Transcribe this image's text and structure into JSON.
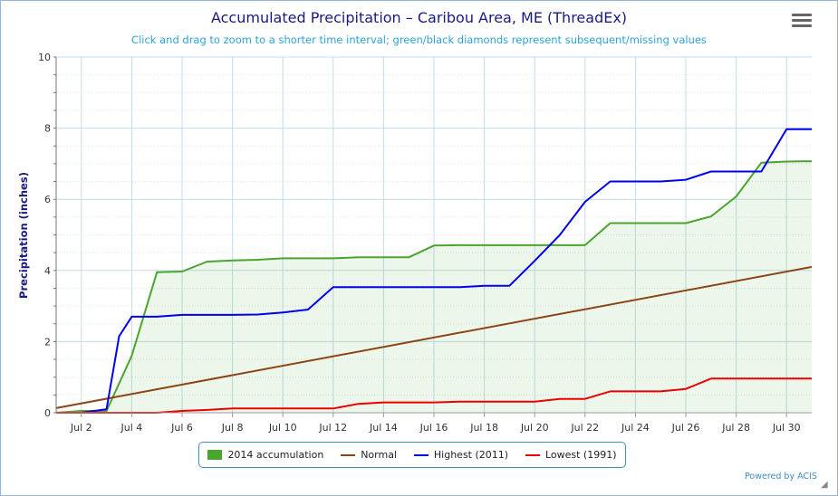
{
  "header": {
    "title": "Accumulated Precipitation – Caribou Area, ME (ThreadEx)",
    "subtitle": "Click and drag to zoom to a shorter time interval; green/black diamonds represent subsequent/missing values"
  },
  "credits": "Powered by ACIS",
  "chart_data": {
    "type": "line",
    "title": "Accumulated Precipitation – Caribou Area, ME (ThreadEx)",
    "ylabel": "Precipitation (inches)",
    "xlabel": "",
    "ylim": [
      0,
      10
    ],
    "xlim": [
      1,
      31
    ],
    "yticks": [
      0,
      2,
      4,
      6,
      8,
      10
    ],
    "xticks": [
      {
        "day": 2,
        "label": "Jul 2"
      },
      {
        "day": 4,
        "label": "Jul 4"
      },
      {
        "day": 6,
        "label": "Jul 6"
      },
      {
        "day": 8,
        "label": "Jul 8"
      },
      {
        "day": 10,
        "label": "Jul 10"
      },
      {
        "day": 12,
        "label": "Jul 12"
      },
      {
        "day": 14,
        "label": "Jul 14"
      },
      {
        "day": 16,
        "label": "Jul 16"
      },
      {
        "day": 18,
        "label": "Jul 18"
      },
      {
        "day": 20,
        "label": "Jul 20"
      },
      {
        "day": 22,
        "label": "Jul 22"
      },
      {
        "day": 24,
        "label": "Jul 24"
      },
      {
        "day": 26,
        "label": "Jul 26"
      },
      {
        "day": 28,
        "label": "Jul 28"
      },
      {
        "day": 30,
        "label": "Jul 30"
      }
    ],
    "legend_position": "bottom",
    "grid": true,
    "series": [
      {
        "name": "2014 accumulation",
        "color": "#4aa52e",
        "area": true,
        "points": [
          [
            1,
            0
          ],
          [
            2,
            0.05
          ],
          [
            3,
            0.05
          ],
          [
            4,
            1.6
          ],
          [
            5,
            3.95
          ],
          [
            6,
            3.97
          ],
          [
            7,
            4.25
          ],
          [
            8,
            4.28
          ],
          [
            9,
            4.3
          ],
          [
            10,
            4.34
          ],
          [
            11,
            4.34
          ],
          [
            12,
            4.34
          ],
          [
            13,
            4.37
          ],
          [
            14,
            4.37
          ],
          [
            15,
            4.37
          ],
          [
            16,
            4.7
          ],
          [
            17,
            4.71
          ],
          [
            18,
            4.71
          ],
          [
            19,
            4.71
          ],
          [
            20,
            4.71
          ],
          [
            21,
            4.71
          ],
          [
            22,
            4.71
          ],
          [
            23,
            5.33
          ],
          [
            24,
            5.33
          ],
          [
            25,
            5.33
          ],
          [
            26,
            5.33
          ],
          [
            27,
            5.52
          ],
          [
            28,
            6.08
          ],
          [
            29,
            7.03
          ],
          [
            30,
            7.06
          ],
          [
            31,
            7.07
          ]
        ]
      },
      {
        "name": "Normal",
        "color": "#8b4513",
        "area": false,
        "points": [
          [
            1,
            0.13
          ],
          [
            31,
            4.1
          ]
        ]
      },
      {
        "name": "Highest (2011)",
        "color": "#0000ee",
        "area": false,
        "points": [
          [
            1,
            0
          ],
          [
            2,
            0
          ],
          [
            3,
            0.1
          ],
          [
            3.5,
            2.15
          ],
          [
            4,
            2.7
          ],
          [
            5,
            2.7
          ],
          [
            6,
            2.75
          ],
          [
            7,
            2.75
          ],
          [
            8,
            2.75
          ],
          [
            9,
            2.76
          ],
          [
            10,
            2.82
          ],
          [
            11,
            2.9
          ],
          [
            12,
            3.53
          ],
          [
            13,
            3.53
          ],
          [
            14,
            3.53
          ],
          [
            15,
            3.53
          ],
          [
            16,
            3.53
          ],
          [
            17,
            3.53
          ],
          [
            18,
            3.57
          ],
          [
            19,
            3.57
          ],
          [
            20,
            4.27
          ],
          [
            21,
            5.0
          ],
          [
            22,
            5.93
          ],
          [
            23,
            6.5
          ],
          [
            24,
            6.5
          ],
          [
            25,
            6.5
          ],
          [
            26,
            6.55
          ],
          [
            27,
            6.78
          ],
          [
            28,
            6.78
          ],
          [
            29,
            6.78
          ],
          [
            30,
            7.97
          ],
          [
            31,
            7.97
          ]
        ]
      },
      {
        "name": "Lowest (1991)",
        "color": "#ee0000",
        "area": false,
        "points": [
          [
            1,
            0
          ],
          [
            2,
            0
          ],
          [
            3,
            0
          ],
          [
            4,
            0
          ],
          [
            5,
            0
          ],
          [
            6,
            0.05
          ],
          [
            7,
            0.08
          ],
          [
            8,
            0.12
          ],
          [
            9,
            0.12
          ],
          [
            10,
            0.12
          ],
          [
            11,
            0.12
          ],
          [
            12,
            0.12
          ],
          [
            13,
            0.25
          ],
          [
            14,
            0.29
          ],
          [
            15,
            0.29
          ],
          [
            16,
            0.29
          ],
          [
            17,
            0.31
          ],
          [
            18,
            0.31
          ],
          [
            19,
            0.31
          ],
          [
            20,
            0.31
          ],
          [
            21,
            0.39
          ],
          [
            22,
            0.39
          ],
          [
            23,
            0.6
          ],
          [
            24,
            0.6
          ],
          [
            25,
            0.6
          ],
          [
            26,
            0.67
          ],
          [
            27,
            0.96
          ],
          [
            28,
            0.96
          ],
          [
            29,
            0.96
          ],
          [
            30,
            0.96
          ],
          [
            31,
            0.96
          ]
        ]
      }
    ]
  }
}
